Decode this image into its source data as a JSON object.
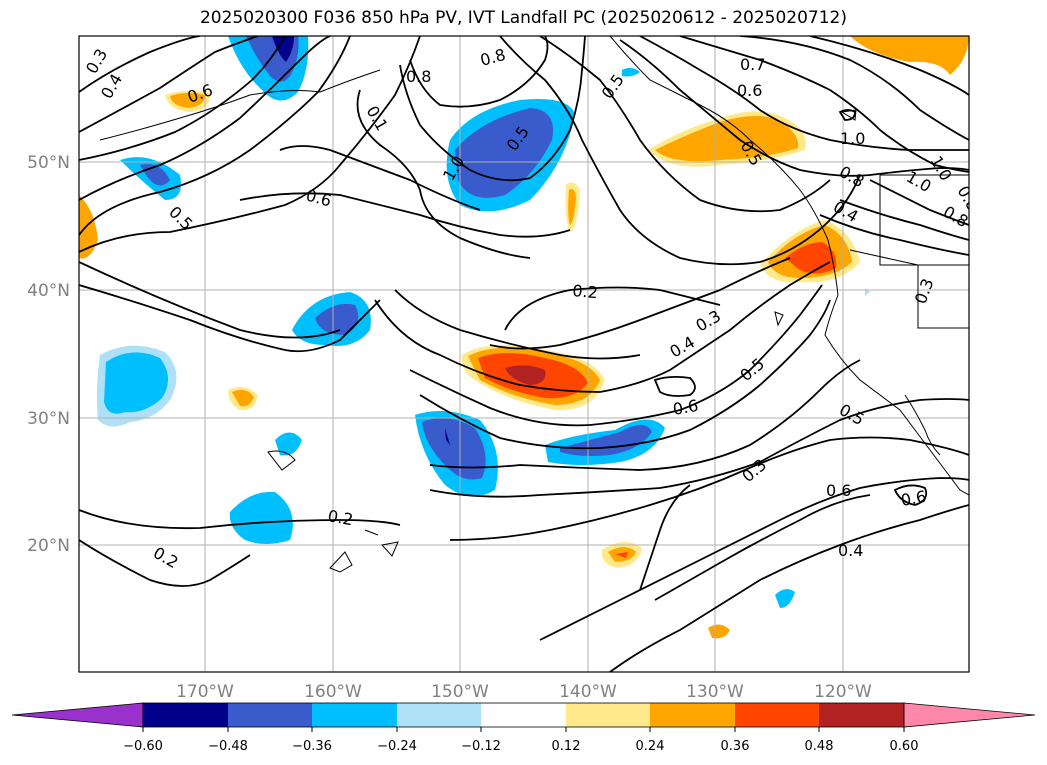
{
  "title": "2025020300 F036 850 hPa PV, IVT Landfall PC (2025020612 - 2025020712)",
  "map": {
    "lat_labels": [
      "50°N",
      "40°N",
      "30°N",
      "20°N"
    ],
    "lon_labels": [
      "170°W",
      "160°W",
      "150°W",
      "140°W",
      "130°W",
      "120°W"
    ],
    "grid": true,
    "contour_labels": [
      "0.3",
      "0.4",
      "0.6",
      "0.8",
      "0.8",
      "0.7",
      "0.6",
      "0.5",
      "0.5",
      "1.0",
      "0.5",
      "0.6",
      "0.5",
      "1.0",
      "0.8",
      "0.4",
      "1.0",
      "0.8",
      "0.3",
      "0.2",
      "0.3",
      "0.4",
      "0.5",
      "0.6",
      "0.5",
      "0.3",
      "0.6",
      "0.4",
      "0.6",
      "0.2",
      "0.2",
      "0.1",
      "0.8",
      "1.0"
    ]
  },
  "colorbar": {
    "ticks": [
      "−0.60",
      "−0.48",
      "−0.36",
      "−0.24",
      "−0.12",
      "0.12",
      "0.24",
      "0.36",
      "0.48",
      "0.60"
    ],
    "colors": [
      "#9932cc",
      "#00008b",
      "#3a5bcc",
      "#00bfff",
      "#aee0f8",
      "#ffffff",
      "#ffe98a",
      "#ffa500",
      "#ff4500",
      "#b22222",
      "#ff88aa"
    ]
  }
}
